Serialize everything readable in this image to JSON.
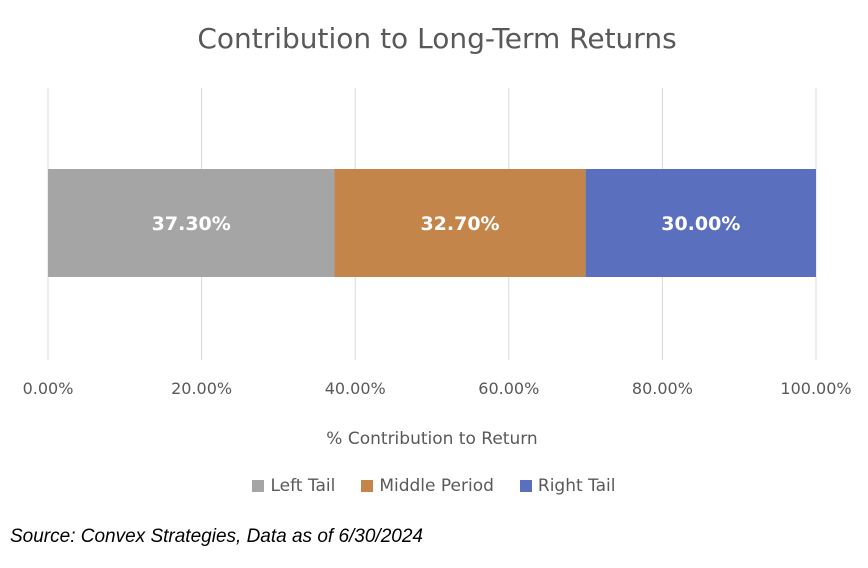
{
  "chart_data": {
    "type": "bar",
    "orientation": "horizontal-stacked",
    "title": "Contribution to Long-Term Returns",
    "xlabel": "% Contribution to Return",
    "ylabel": "",
    "xlim": [
      0,
      100
    ],
    "x_ticks": [
      "0.00%",
      "20.00%",
      "40.00%",
      "60.00%",
      "80.00%",
      "100.00%"
    ],
    "grid": "vertical",
    "legend_position": "bottom",
    "series": [
      {
        "name": "Left Tail",
        "value": 37.3,
        "label": "37.30%",
        "color": "#a5a5a5"
      },
      {
        "name": "Middle Period",
        "value": 32.7,
        "label": "32.70%",
        "color": "#c4854a"
      },
      {
        "name": "Right Tail",
        "value": 30.0,
        "label": "30.00%",
        "color": "#5b6fbf"
      }
    ]
  },
  "footer": {
    "source": "Source: Convex Strategies, Data as of 6/30/2024"
  }
}
